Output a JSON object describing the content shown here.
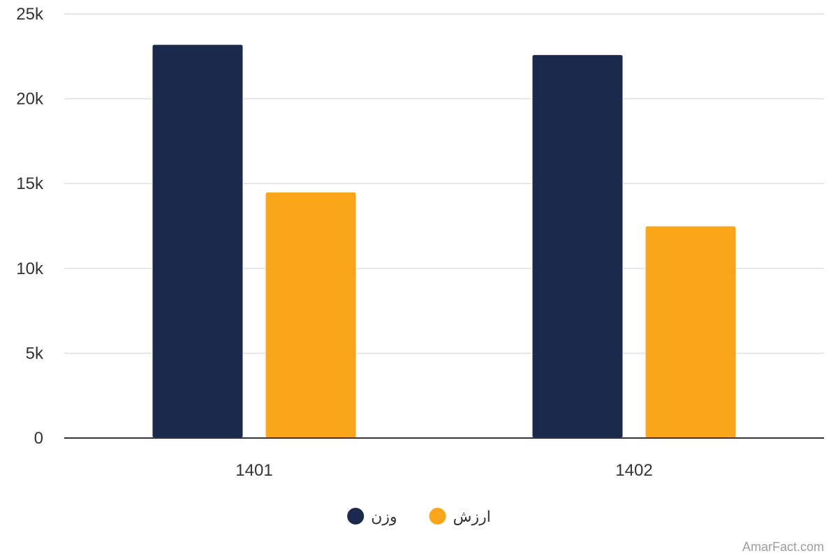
{
  "chart_data": {
    "type": "bar",
    "categories": [
      "1401",
      "1402"
    ],
    "series": [
      {
        "name": "وزن",
        "color": "#1b2a4c",
        "values": [
          23200,
          22600
        ]
      },
      {
        "name": "ارزش",
        "color": "#fba518",
        "values": [
          14500,
          12500
        ]
      }
    ],
    "ylim": [
      0,
      25000
    ],
    "yticks": [
      0,
      5000,
      10000,
      15000,
      20000,
      25000
    ],
    "ytick_labels": [
      "0",
      "5k",
      "10k",
      "15k",
      "20k",
      "25k"
    ],
    "grid": true,
    "legend_position": "bottom-center"
  },
  "credit": "AmarFact.com"
}
